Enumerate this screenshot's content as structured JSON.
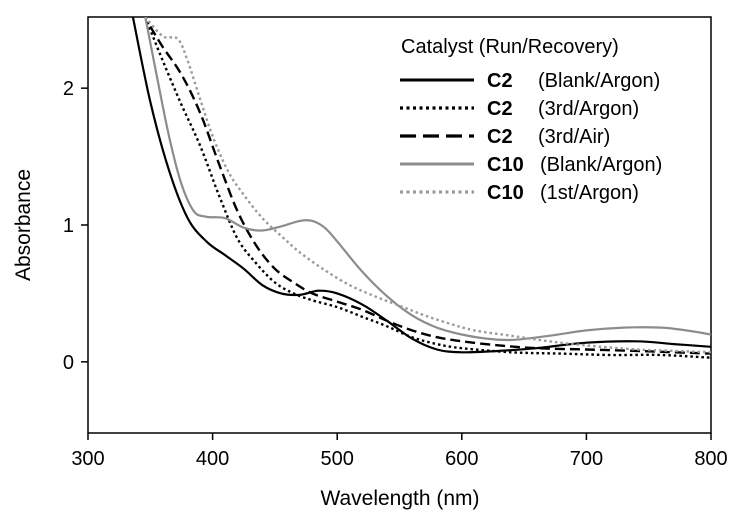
{
  "chart_data": {
    "type": "line",
    "xlabel": "Wavelength (nm)",
    "ylabel": "Absorbance",
    "xlim": [
      300,
      800
    ],
    "ylim": [
      -0.52,
      2.52
    ],
    "xticks": [
      300,
      400,
      500,
      600,
      700,
      800
    ],
    "yticks": [
      0,
      1,
      2
    ],
    "grid": false,
    "legend": {
      "title": "Catalyst (Run/Recovery)",
      "placement": "top-right"
    },
    "series": [
      {
        "name": "C2",
        "detail": "(Blank/Argon)",
        "color": "#000000",
        "dash": "solid",
        "points": [
          [
            336,
            2.52
          ],
          [
            350,
            1.9
          ],
          [
            365,
            1.4
          ],
          [
            380,
            1.05
          ],
          [
            395,
            0.88
          ],
          [
            410,
            0.78
          ],
          [
            425,
            0.68
          ],
          [
            440,
            0.56
          ],
          [
            455,
            0.5
          ],
          [
            470,
            0.49
          ],
          [
            485,
            0.52
          ],
          [
            500,
            0.5
          ],
          [
            520,
            0.42
          ],
          [
            540,
            0.3
          ],
          [
            560,
            0.17
          ],
          [
            580,
            0.09
          ],
          [
            600,
            0.07
          ],
          [
            630,
            0.08
          ],
          [
            660,
            0.1
          ],
          [
            700,
            0.14
          ],
          [
            740,
            0.15
          ],
          [
            770,
            0.13
          ],
          [
            800,
            0.11
          ]
        ]
      },
      {
        "name": "C2",
        "detail": "(3rd/Argon)",
        "color": "#000000",
        "dash": "dotted",
        "points": [
          [
            346,
            2.52
          ],
          [
            360,
            2.2
          ],
          [
            375,
            1.88
          ],
          [
            390,
            1.58
          ],
          [
            405,
            1.22
          ],
          [
            420,
            0.9
          ],
          [
            435,
            0.72
          ],
          [
            450,
            0.58
          ],
          [
            465,
            0.5
          ],
          [
            480,
            0.45
          ],
          [
            500,
            0.4
          ],
          [
            520,
            0.33
          ],
          [
            540,
            0.26
          ],
          [
            560,
            0.18
          ],
          [
            580,
            0.13
          ],
          [
            600,
            0.1
          ],
          [
            640,
            0.07
          ],
          [
            680,
            0.06
          ],
          [
            720,
            0.05
          ],
          [
            760,
            0.05
          ],
          [
            800,
            0.03
          ]
        ]
      },
      {
        "name": "C2",
        "detail": "(3rd/Air)",
        "color": "#000000",
        "dash": "dashed",
        "points": [
          [
            350,
            2.45
          ],
          [
            360,
            2.3
          ],
          [
            375,
            2.1
          ],
          [
            390,
            1.82
          ],
          [
            405,
            1.45
          ],
          [
            420,
            1.1
          ],
          [
            435,
            0.85
          ],
          [
            450,
            0.68
          ],
          [
            465,
            0.58
          ],
          [
            480,
            0.5
          ],
          [
            500,
            0.44
          ],
          [
            520,
            0.38
          ],
          [
            540,
            0.3
          ],
          [
            560,
            0.23
          ],
          [
            580,
            0.18
          ],
          [
            600,
            0.15
          ],
          [
            630,
            0.12
          ],
          [
            660,
            0.1
          ],
          [
            700,
            0.09
          ],
          [
            740,
            0.08
          ],
          [
            770,
            0.07
          ],
          [
            800,
            0.06
          ]
        ]
      },
      {
        "name": "C10",
        "detail": "(Blank/Argon)",
        "color": "#8c8c8c",
        "dash": "solid",
        "points": [
          [
            346,
            2.52
          ],
          [
            355,
            2.1
          ],
          [
            365,
            1.65
          ],
          [
            375,
            1.3
          ],
          [
            385,
            1.1
          ],
          [
            395,
            1.06
          ],
          [
            410,
            1.05
          ],
          [
            425,
            0.98
          ],
          [
            440,
            0.96
          ],
          [
            455,
            0.99
          ],
          [
            470,
            1.03
          ],
          [
            480,
            1.03
          ],
          [
            490,
            0.98
          ],
          [
            500,
            0.88
          ],
          [
            520,
            0.66
          ],
          [
            540,
            0.48
          ],
          [
            560,
            0.34
          ],
          [
            580,
            0.25
          ],
          [
            600,
            0.2
          ],
          [
            620,
            0.17
          ],
          [
            640,
            0.16
          ],
          [
            670,
            0.19
          ],
          [
            700,
            0.23
          ],
          [
            730,
            0.25
          ],
          [
            760,
            0.25
          ],
          [
            780,
            0.23
          ],
          [
            800,
            0.2
          ]
        ]
      },
      {
        "name": "C10",
        "detail": "(1st/Argon)",
        "color": "#9a9a9a",
        "dash": "dotted",
        "points": [
          [
            346,
            2.52
          ],
          [
            360,
            2.38
          ],
          [
            372,
            2.36
          ],
          [
            380,
            2.2
          ],
          [
            390,
            1.92
          ],
          [
            400,
            1.65
          ],
          [
            412,
            1.4
          ],
          [
            425,
            1.22
          ],
          [
            440,
            1.05
          ],
          [
            455,
            0.92
          ],
          [
            470,
            0.8
          ],
          [
            490,
            0.67
          ],
          [
            510,
            0.56
          ],
          [
            530,
            0.48
          ],
          [
            550,
            0.41
          ],
          [
            570,
            0.34
          ],
          [
            590,
            0.28
          ],
          [
            610,
            0.23
          ],
          [
            640,
            0.19
          ],
          [
            670,
            0.15
          ],
          [
            700,
            0.12
          ],
          [
            740,
            0.09
          ],
          [
            770,
            0.08
          ],
          [
            800,
            0.07
          ]
        ]
      }
    ]
  }
}
